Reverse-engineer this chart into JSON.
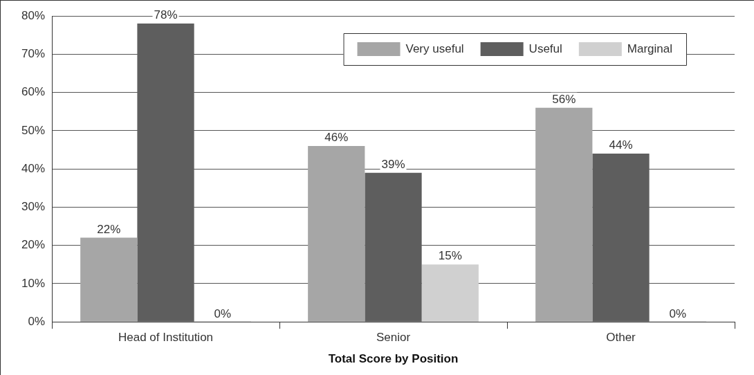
{
  "chart_data": {
    "type": "bar",
    "xlabel": "Total Score by Position",
    "categories": [
      "Head of Institution",
      "Senior",
      "Other"
    ],
    "series": [
      {
        "name": "Very useful",
        "color": "#a6a6a6",
        "values": [
          22,
          46,
          56
        ],
        "value_labels": [
          "22%",
          "46%",
          "56%"
        ]
      },
      {
        "name": "Useful",
        "color": "#5e5e5e",
        "values": [
          78,
          39,
          44
        ],
        "value_labels": [
          "78%",
          "39%",
          "44%"
        ]
      },
      {
        "name": "Marginal",
        "color": "#d0d0d0",
        "values": [
          0,
          15,
          0
        ],
        "value_labels": [
          "0%",
          "15%",
          "0%"
        ]
      }
    ],
    "ylim": [
      0,
      80
    ],
    "yticks": [
      {
        "value": 0,
        "label": "0%"
      },
      {
        "value": 10,
        "label": "10%"
      },
      {
        "value": 20,
        "label": "20%"
      },
      {
        "value": 30,
        "label": "30%"
      },
      {
        "value": 40,
        "label": "40%"
      },
      {
        "value": 50,
        "label": "50%"
      },
      {
        "value": 60,
        "label": "60%"
      },
      {
        "value": 70,
        "label": "70%"
      },
      {
        "value": 80,
        "label": "80%"
      }
    ],
    "grid": "y",
    "legend": "top right"
  }
}
